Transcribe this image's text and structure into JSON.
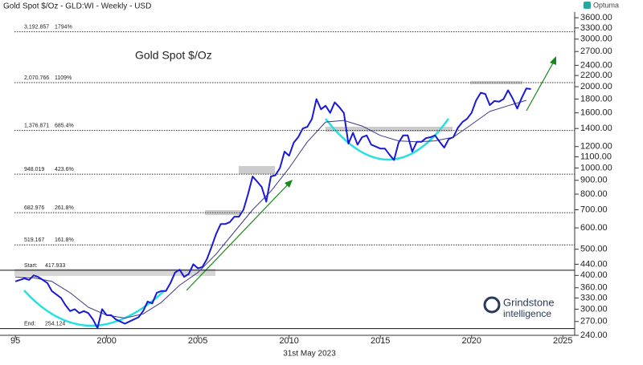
{
  "chart_data": {
    "type": "line",
    "header": "Gold Spot $/Oz - GLD:WI - Weekly - USD",
    "brand": "Optuma",
    "title": "Gold Spot $/Oz",
    "date": "31st May 2023",
    "logo": [
      "Grindstone",
      "intelligence"
    ],
    "yscale": "log",
    "grid": false,
    "xlim": [
      1994.95,
      2025.65
    ],
    "ylim": [
      240,
      3780
    ],
    "xticks": [
      {
        "value": 1995,
        "label": "95"
      },
      2000,
      2005,
      2010,
      2015,
      2020,
      2025
    ],
    "yticks": [
      {
        "value": 3600,
        "label": "3600.00"
      },
      {
        "value": 3300,
        "label": "3300.00"
      },
      {
        "value": 3000,
        "label": "3000.00"
      },
      {
        "value": 2700,
        "label": "2700.00"
      },
      {
        "value": 2400,
        "label": "2400.00"
      },
      {
        "value": 2200,
        "label": "2200.00"
      },
      {
        "value": 2000,
        "label": "2000.00"
      },
      {
        "value": 1800,
        "label": "1800.00"
      },
      {
        "value": 1600,
        "label": "1600.00"
      },
      {
        "value": 1400,
        "label": "1400.00"
      },
      {
        "value": 1200,
        "label": "1200.00"
      },
      {
        "value": 1100,
        "label": "1100.00"
      },
      {
        "value": 1000,
        "label": "1000.00"
      },
      {
        "value": 900,
        "label": "900.00"
      },
      {
        "value": 800,
        "label": "800.00"
      },
      {
        "value": 700,
        "label": "700.00"
      },
      {
        "value": 600,
        "label": "600.00"
      },
      {
        "value": 500,
        "label": "500.00"
      },
      {
        "value": 440,
        "label": "440.00"
      },
      {
        "value": 400,
        "label": "400.00"
      },
      {
        "value": 360,
        "label": "360.00"
      },
      {
        "value": 330,
        "label": "330.00"
      },
      {
        "value": 300,
        "label": "300.00"
      },
      {
        "value": 270,
        "label": "270.00"
      },
      {
        "value": 240,
        "label": "240.00"
      }
    ],
    "levels": [
      {
        "value": 3192.857,
        "label": "3,192.857",
        "percent": "1794%"
      },
      {
        "value": 2070.766,
        "label": "2,070.766",
        "percent": "1109%"
      },
      {
        "value": 1376.871,
        "label": "1,376.871",
        "percent": "685.4%"
      },
      {
        "value": 948.019,
        "label": "948.019",
        "percent": "423.6%"
      },
      {
        "value": 682.976,
        "label": "682.976",
        "percent": "261.8%"
      },
      {
        "value": 519.167,
        "label": "519.167",
        "percent": "161.8%"
      }
    ],
    "anchors": [
      {
        "name": "Start:",
        "value": 417.933,
        "label": "417.933"
      },
      {
        "name": "End:",
        "value": 254.124,
        "label": "254.124"
      }
    ],
    "series": [
      {
        "color": "#1a1ad6",
        "width": 2,
        "x": [
          1995,
          1995.25,
          1995.5,
          1995.75,
          1996,
          1996.25,
          1996.5,
          1996.75,
          1997,
          1997.25,
          1997.5,
          1997.75,
          1998,
          1998.25,
          1998.5,
          1998.75,
          1999,
          1999.25,
          1999.5,
          1999.75,
          2000,
          2000.25,
          2000.5,
          2000.75,
          2001,
          2001.25,
          2001.5,
          2001.75,
          2002,
          2002.25,
          2002.5,
          2002.75,
          2003,
          2003.25,
          2003.5,
          2003.75,
          2004,
          2004.25,
          2004.5,
          2004.75,
          2005,
          2005.25,
          2005.5,
          2005.75,
          2006,
          2006.25,
          2006.5,
          2006.75,
          2007,
          2007.25,
          2007.5,
          2007.75,
          2008,
          2008.25,
          2008.5,
          2008.75,
          2009,
          2009.25,
          2009.5,
          2009.75,
          2010,
          2010.25,
          2010.5,
          2010.75,
          2011,
          2011.25,
          2011.5,
          2011.75,
          2012,
          2012.25,
          2012.5,
          2012.75,
          2013,
          2013.25,
          2013.5,
          2013.75,
          2014,
          2014.25,
          2014.5,
          2014.75,
          2015,
          2015.25,
          2015.5,
          2015.75,
          2016,
          2016.25,
          2016.5,
          2016.75,
          2017,
          2017.25,
          2017.5,
          2017.75,
          2018,
          2018.25,
          2018.5,
          2018.75,
          2019,
          2019.25,
          2019.5,
          2019.75,
          2020,
          2020.25,
          2020.5,
          2020.75,
          2021,
          2021.25,
          2021.5,
          2021.75,
          2022,
          2022.25,
          2022.5,
          2022.75,
          2023,
          2023.25
        ],
        "values": [
          380,
          385,
          390,
          385,
          400,
          395,
          385,
          375,
          350,
          340,
          330,
          310,
          295,
          300,
          290,
          295,
          290,
          275,
          255,
          300,
          285,
          285,
          275,
          270,
          265,
          270,
          275,
          280,
          295,
          320,
          315,
          345,
          350,
          350,
          375,
          410,
          420,
          395,
          405,
          440,
          425,
          430,
          460,
          510,
          570,
          620,
          620,
          630,
          660,
          660,
          700,
          800,
          930,
          890,
          850,
          750,
          930,
          940,
          1000,
          1150,
          1110,
          1240,
          1300,
          1400,
          1420,
          1520,
          1800,
          1650,
          1700,
          1600,
          1750,
          1680,
          1600,
          1230,
          1350,
          1220,
          1300,
          1320,
          1220,
          1200,
          1180,
          1180,
          1120,
          1070,
          1240,
          1320,
          1320,
          1150,
          1250,
          1250,
          1290,
          1300,
          1320,
          1250,
          1190,
          1280,
          1300,
          1410,
          1480,
          1520,
          1600,
          1780,
          1900,
          1880,
          1710,
          1770,
          1760,
          1800,
          1940,
          1810,
          1660,
          1820,
          1970,
          1960
        ]
      },
      {
        "color": "#3a3a8a",
        "width": 1,
        "x": [
          1995,
          1996,
          1997,
          1998,
          1999,
          2000,
          2001,
          2002,
          2003,
          2004,
          2005,
          2006,
          2007,
          2008,
          2009,
          2010,
          2011,
          2012,
          2013,
          2014,
          2015,
          2016,
          2017,
          2018,
          2019,
          2020,
          2021,
          2022,
          2023
        ],
        "values": [
          395,
          392,
          380,
          345,
          305,
          285,
          278,
          288,
          318,
          368,
          410,
          480,
          580,
          700,
          820,
          1000,
          1250,
          1480,
          1500,
          1430,
          1320,
          1260,
          1250,
          1260,
          1300,
          1450,
          1620,
          1700,
          1780
        ]
      }
    ]
  }
}
